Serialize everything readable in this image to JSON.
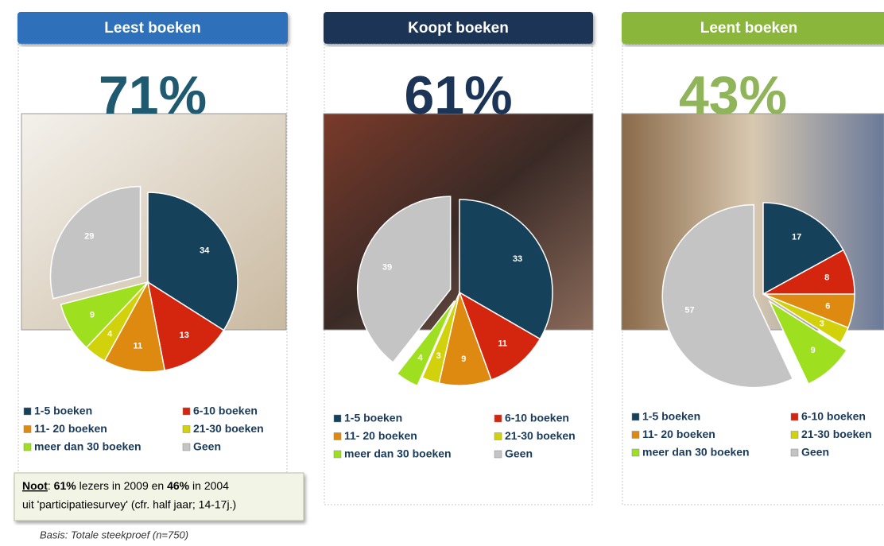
{
  "chart_data": [
    {
      "type": "pie",
      "title": "Leest boeken",
      "headline": "71%",
      "headline_color": "#1f5a70",
      "header_color": "#2f6fba",
      "categories": [
        "1-5 boeken",
        "6-10 boeken",
        "11- 20 boeken",
        "21-30 boeken",
        "meer dan 30 boeken",
        "Geen"
      ],
      "values": [
        34,
        13,
        11,
        4,
        9,
        29
      ],
      "colors": [
        "#15425a",
        "#d4260f",
        "#de8a10",
        "#d2d20c",
        "#9ee020",
        "#c4c4c4"
      ],
      "explode": [
        false,
        false,
        false,
        false,
        false,
        true
      ]
    },
    {
      "type": "pie",
      "title": "Koopt boeken",
      "headline": "61%",
      "headline_color": "#1c3557",
      "header_color": "#1c3557",
      "categories": [
        "1-5 boeken",
        "6-10 boeken",
        "11- 20 boeken",
        "21-30 boeken",
        "meer dan 30 boeken",
        "Geen"
      ],
      "values": [
        33,
        11,
        9,
        3,
        4,
        39
      ],
      "colors": [
        "#15425a",
        "#d4260f",
        "#de8a10",
        "#d2d20c",
        "#9ee020",
        "#c4c4c4"
      ],
      "explode": [
        false,
        false,
        false,
        false,
        true,
        true
      ]
    },
    {
      "type": "pie",
      "title": "Leent boeken",
      "headline": "43%",
      "headline_color": "#8fb45a",
      "header_color": "#8ab63a",
      "categories": [
        "1-5 boeken",
        "6-10 boeken",
        "11- 20 boeken",
        "21-30 boeken",
        "meer dan 30 boeken",
        "Geen"
      ],
      "values": [
        17,
        8,
        6,
        3,
        9,
        57
      ],
      "colors": [
        "#15425a",
        "#d4260f",
        "#de8a10",
        "#d2d20c",
        "#9ee020",
        "#c4c4c4"
      ],
      "explode": [
        false,
        false,
        false,
        false,
        true,
        true
      ]
    }
  ],
  "note": {
    "line1": [
      "Noot",
      ": ",
      "61%",
      " lezers in 2009 en ",
      "46%",
      " in 2004"
    ],
    "line2": "uit 'participatiesurvey' (cfr. half jaar; 14-17j.)"
  },
  "basis": "Basis: Totale steekproef (n=750)"
}
